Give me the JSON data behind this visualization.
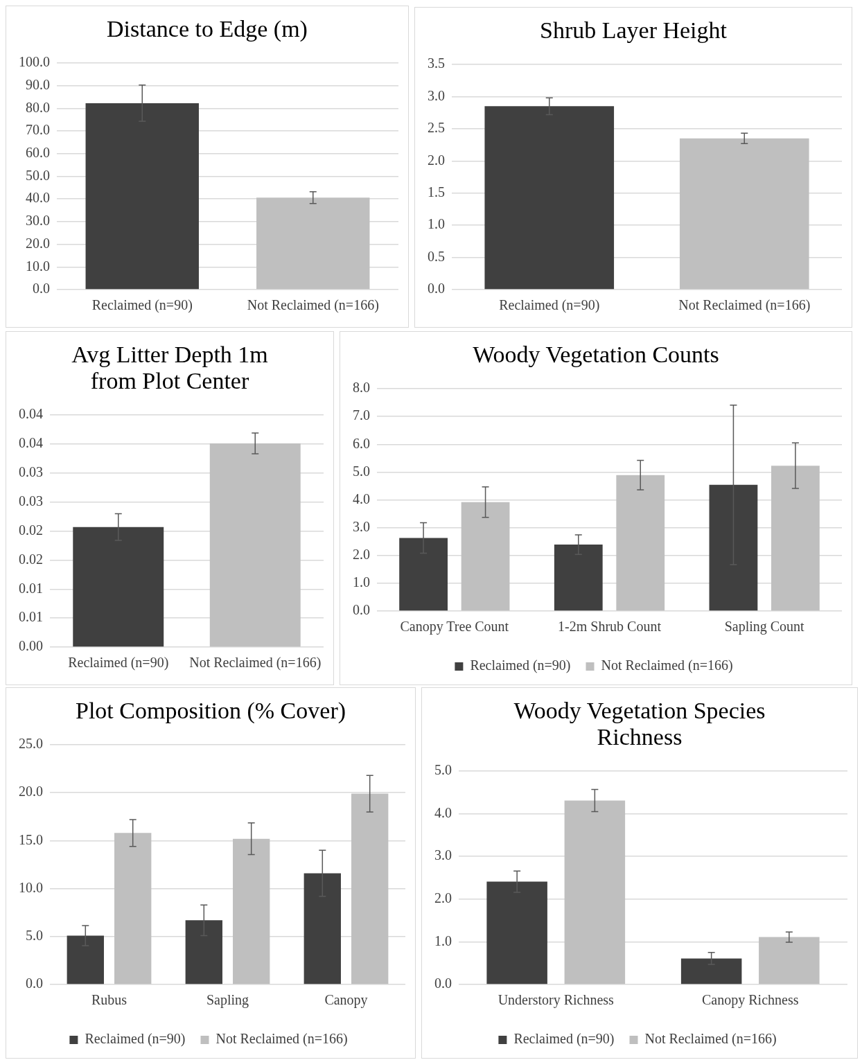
{
  "chart_data": [
    {
      "type": "bar",
      "title": "Distance to Edge (m)",
      "categories": [
        "Reclaimed (n=90)",
        "Not Reclaimed (n=166)"
      ],
      "values": [
        82.3,
        40.6
      ],
      "colors": [
        "#404040",
        "#bfbfbf"
      ],
      "errors": [
        8,
        2.6
      ],
      "ylim": [
        0,
        100
      ],
      "yticks": [
        {
          "value": 0,
          "label": "0.0"
        },
        {
          "value": 10,
          "label": "10.0"
        },
        {
          "value": 20,
          "label": "20.0"
        },
        {
          "value": 30,
          "label": "30.0"
        },
        {
          "value": 40,
          "label": "40.0"
        },
        {
          "value": 50,
          "label": "50.0"
        },
        {
          "value": 60,
          "label": "60.0"
        },
        {
          "value": 70,
          "label": "70.0"
        },
        {
          "value": 80,
          "label": "80.0"
        },
        {
          "value": 90,
          "label": "90.0"
        },
        {
          "value": 100,
          "label": "100.0"
        }
      ],
      "grid": "y"
    },
    {
      "type": "bar",
      "title": "Shrub Layer Height",
      "categories": [
        "Reclaimed (n=90)",
        "Not Reclaimed (n=166)"
      ],
      "values": [
        2.85,
        2.35
      ],
      "colors": [
        "#404040",
        "#bfbfbf"
      ],
      "errors": [
        0.13,
        0.08
      ],
      "ylim": [
        0,
        3.5
      ],
      "yticks": [
        {
          "value": 0,
          "label": "0.0"
        },
        0.5,
        {
          "value": 1,
          "label": "1.0"
        },
        1.5,
        {
          "value": 2,
          "label": "2.0"
        },
        2.5,
        {
          "value": 3,
          "label": "3.0"
        },
        3.5
      ],
      "grid": "y"
    },
    {
      "type": "bar",
      "title": "Avg Litter Depth 1m from Plot Center",
      "categories": [
        "Reclaimed (n=90)",
        "Not Reclaimed (n=166)"
      ],
      "values": [
        0.0207,
        0.0351
      ],
      "colors": [
        "#404040",
        "#bfbfbf"
      ],
      "errors": [
        0.0023,
        0.0018
      ],
      "ylim": [
        0,
        0.04
      ],
      "yticks": [
        {
          "value": 0,
          "label": "0.00"
        },
        {
          "value": 0.005,
          "label": "0.01"
        },
        {
          "value": 0.01,
          "label": "0.01"
        },
        {
          "value": 0.015,
          "label": "0.02"
        },
        {
          "value": 0.02,
          "label": "0.02"
        },
        {
          "value": 0.025,
          "label": "0.03"
        },
        {
          "value": 0.03,
          "label": "0.03"
        },
        {
          "value": 0.035,
          "label": "0.04"
        },
        {
          "value": 0.04,
          "label": "0.04"
        }
      ],
      "grid": "y"
    },
    {
      "type": "bar",
      "title": "Woody Vegetation Counts",
      "categories": [
        "Canopy Tree Count",
        "1-2m Shrub Count",
        "Sapling Count"
      ],
      "series": [
        {
          "name": "Reclaimed (n=90)",
          "color": "#404040",
          "values": [
            2.63,
            2.39,
            4.54
          ],
          "errors": [
            0.55,
            0.35,
            2.87
          ]
        },
        {
          "name": "Not Reclaimed (n=166)",
          "color": "#bfbfbf",
          "values": [
            3.92,
            4.89,
            5.23
          ],
          "errors": [
            0.55,
            0.53,
            0.82
          ]
        }
      ],
      "ylim": [
        0,
        8
      ],
      "yticks": [
        {
          "value": 0,
          "label": "0.0"
        },
        {
          "value": 1,
          "label": "1.0"
        },
        {
          "value": 2,
          "label": "2.0"
        },
        {
          "value": 3,
          "label": "3.0"
        },
        {
          "value": 4,
          "label": "4.0"
        },
        {
          "value": 5,
          "label": "5.0"
        },
        {
          "value": 6,
          "label": "6.0"
        },
        {
          "value": 7,
          "label": "7.0"
        },
        {
          "value": 8,
          "label": "8.0"
        }
      ],
      "grid": "y",
      "legend": "bottom"
    },
    {
      "type": "bar",
      "title": "Plot Composition (% Cover)",
      "categories": [
        "Rubus",
        "Sapling",
        "Canopy"
      ],
      "series": [
        {
          "name": "Reclaimed (n=90)",
          "color": "#404040",
          "values": [
            5.1,
            6.7,
            11.6
          ],
          "errors": [
            1.05,
            1.6,
            2.4
          ]
        },
        {
          "name": "Not Reclaimed (n=166)",
          "color": "#bfbfbf",
          "values": [
            15.8,
            15.2,
            19.9
          ],
          "errors": [
            1.4,
            1.65,
            1.9
          ]
        }
      ],
      "ylim": [
        0,
        25
      ],
      "yticks": [
        {
          "value": 0,
          "label": "0.0"
        },
        {
          "value": 5,
          "label": "5.0"
        },
        {
          "value": 10,
          "label": "10.0"
        },
        {
          "value": 15,
          "label": "15.0"
        },
        {
          "value": 20,
          "label": "20.0"
        },
        {
          "value": 25,
          "label": "25.0"
        }
      ],
      "grid": "y",
      "legend": "bottom"
    },
    {
      "type": "bar",
      "title": "Woody Vegetation Species Richness",
      "categories": [
        "Understory Richness",
        "Canopy Richness"
      ],
      "series": [
        {
          "name": "Reclaimed (n=90)",
          "color": "#404040",
          "values": [
            2.41,
            0.61
          ],
          "errors": [
            0.25,
            0.14
          ]
        },
        {
          "name": "Not Reclaimed (n=166)",
          "color": "#bfbfbf",
          "values": [
            4.31,
            1.11
          ],
          "errors": [
            0.26,
            0.12
          ]
        }
      ],
      "ylim": [
        0,
        5
      ],
      "yticks": [
        {
          "value": 0,
          "label": "0.0"
        },
        {
          "value": 1,
          "label": "1.0"
        },
        {
          "value": 2,
          "label": "2.0"
        },
        {
          "value": 3,
          "label": "3.0"
        },
        {
          "value": 4,
          "label": "4.0"
        },
        {
          "value": 5,
          "label": "5.0"
        }
      ],
      "grid": "y",
      "legend": "bottom"
    }
  ]
}
